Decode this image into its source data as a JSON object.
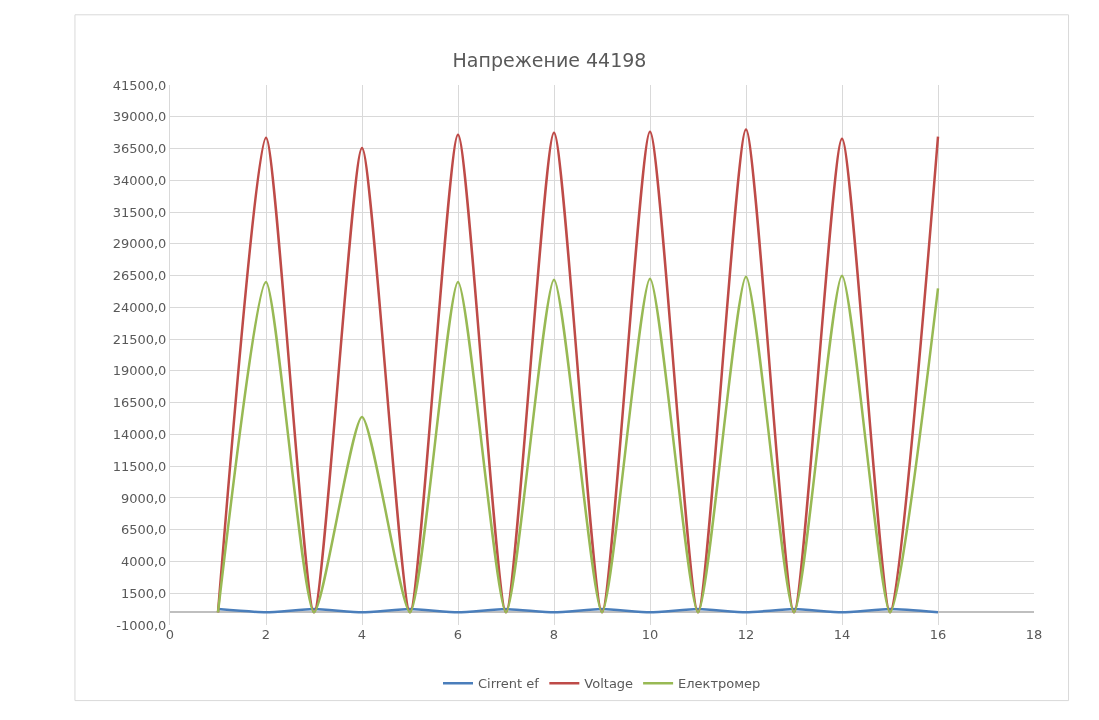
{
  "chart_data": {
    "type": "line",
    "title": "Напрежение 44198",
    "x": [
      1,
      2,
      3,
      4,
      5,
      6,
      7,
      8,
      9,
      10,
      11,
      12,
      13,
      14,
      15,
      16
    ],
    "series": [
      {
        "name": "Cirrent ef",
        "color": "#4a7ebb",
        "values": [
          250,
          0,
          250,
          0,
          250,
          0,
          250,
          0,
          250,
          0,
          250,
          0,
          250,
          0,
          250,
          0
        ]
      },
      {
        "name": "Voltage",
        "color": "#be4b48",
        "values": [
          0,
          37350,
          0,
          36550,
          0,
          37590,
          0,
          37750,
          0,
          37830,
          0,
          37990,
          0,
          37270,
          0,
          37430
        ]
      },
      {
        "name": "Електромер",
        "color": "#98b954",
        "values": [
          0,
          26000,
          0,
          15380,
          0,
          26000,
          0,
          26170,
          0,
          26250,
          0,
          26400,
          0,
          26490,
          0,
          25500
        ]
      }
    ],
    "xlim": [
      0,
      18
    ],
    "xticks": [
      0,
      2,
      4,
      6,
      8,
      10,
      12,
      14,
      16,
      18
    ],
    "ylim": [
      -1000,
      41500
    ],
    "yticks": [
      {
        "value": -1000,
        "label": "-1000,0"
      },
      {
        "value": 1500,
        "label": "1500,0"
      },
      {
        "value": 4000,
        "label": "4000,0"
      },
      {
        "value": 6500,
        "label": "6500,0"
      },
      {
        "value": 9000,
        "label": "9000,0"
      },
      {
        "value": 11500,
        "label": "11500,0"
      },
      {
        "value": 14000,
        "label": "14000,0"
      },
      {
        "value": 16500,
        "label": "16500,0"
      },
      {
        "value": 19000,
        "label": "19000,0"
      },
      {
        "value": 21500,
        "label": "21500,0"
      },
      {
        "value": 24000,
        "label": "24000,0"
      },
      {
        "value": 26500,
        "label": "26500,0"
      },
      {
        "value": 29000,
        "label": "29000,0"
      },
      {
        "value": 31500,
        "label": "31500,0"
      },
      {
        "value": 34000,
        "label": "34000,0"
      },
      {
        "value": 36500,
        "label": "36500,0"
      },
      {
        "value": 39000,
        "label": "39000,0"
      },
      {
        "value": 41500,
        "label": "41500,0"
      }
    ],
    "grid": true,
    "legend": "bottom",
    "marker": "none",
    "line_style": "solid"
  }
}
